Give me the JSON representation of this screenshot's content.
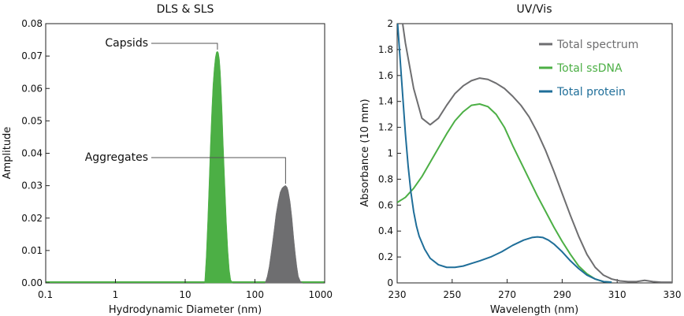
{
  "chart_data": [
    {
      "type": "area",
      "title": "DLS & SLS",
      "xlabel": "Hydrodynamic Diameter (nm)",
      "ylabel": "Amplitude",
      "xscale": "log",
      "xlim": [
        0.1,
        1000
      ],
      "ylim": [
        0,
        0.08
      ],
      "xticks": [
        "0.1",
        "1",
        "10",
        "100",
        "1000"
      ],
      "yticks": [
        "0.00",
        "0.01",
        "0.02",
        "0.03",
        "0.04",
        "0.05",
        "0.06",
        "0.07",
        "0.08"
      ],
      "series": [
        {
          "name": "Capsids",
          "color": "#4caf45",
          "x": [
            19,
            20,
            21,
            22,
            23,
            24,
            25,
            26,
            27,
            28,
            29,
            30,
            31,
            32,
            33,
            34,
            35,
            37,
            39,
            41,
            43,
            45,
            48
          ],
          "y": [
            0,
            0.008,
            0.019,
            0.031,
            0.043,
            0.053,
            0.061,
            0.066,
            0.0695,
            0.0712,
            0.0715,
            0.071,
            0.069,
            0.065,
            0.059,
            0.052,
            0.044,
            0.031,
            0.019,
            0.01,
            0.004,
            0.001,
            0
          ]
        },
        {
          "name": "Aggregates",
          "color": "#6e6e70",
          "x": [
            140,
            150,
            160,
            170,
            180,
            190,
            200,
            215,
            230,
            245,
            260,
            275,
            290,
            300,
            320,
            340,
            360,
            380,
            400,
            420,
            450,
            480
          ],
          "y": [
            0,
            0.002,
            0.005,
            0.009,
            0.013,
            0.017,
            0.021,
            0.025,
            0.028,
            0.0293,
            0.0298,
            0.0301,
            0.0295,
            0.0285,
            0.025,
            0.02,
            0.014,
            0.009,
            0.005,
            0.002,
            0.0005,
            0
          ]
        }
      ],
      "annotations": [
        "Capsids",
        "Aggregates"
      ]
    },
    {
      "type": "line",
      "title": "UV/Vis",
      "xlabel": "Wavelength (nm)",
      "ylabel": "Absorbance (10 mm)",
      "xlim": [
        230,
        330
      ],
      "ylim": [
        0,
        2
      ],
      "xticks": [
        "230",
        "250",
        "270",
        "290",
        "310",
        "330"
      ],
      "yticks": [
        "0",
        "0.2",
        "0.4",
        "0.6",
        "0.8",
        "1",
        "1.2",
        "1.4",
        "1.6",
        "1.8",
        "2"
      ],
      "legend": "top-right",
      "series": [
        {
          "name": "Total spectrum",
          "color": "#6e6e70",
          "x": [
            230,
            233,
            236,
            239,
            242,
            245,
            248,
            251,
            254,
            257,
            260,
            263,
            266,
            269,
            272,
            275,
            278,
            281,
            284,
            287,
            290,
            293,
            296,
            299,
            302,
            305,
            308,
            311,
            314,
            317,
            320,
            323,
            326,
            330
          ],
          "y": [
            2.3,
            1.85,
            1.5,
            1.27,
            1.22,
            1.27,
            1.37,
            1.46,
            1.52,
            1.56,
            1.58,
            1.57,
            1.54,
            1.5,
            1.44,
            1.37,
            1.28,
            1.16,
            1.02,
            0.86,
            0.69,
            0.52,
            0.36,
            0.22,
            0.12,
            0.06,
            0.03,
            0.015,
            0.01,
            0.01,
            0.02,
            0.01,
            0.005,
            0.005
          ]
        },
        {
          "name": "Total ssDNA",
          "color": "#4caf45",
          "x": [
            230,
            233,
            236,
            239,
            242,
            245,
            248,
            251,
            254,
            257,
            260,
            263,
            266,
            269,
            272,
            275,
            278,
            281,
            284,
            287,
            290,
            293,
            296,
            299,
            302,
            305,
            308
          ],
          "y": [
            0.62,
            0.66,
            0.73,
            0.82,
            0.93,
            1.04,
            1.15,
            1.25,
            1.32,
            1.37,
            1.38,
            1.36,
            1.3,
            1.2,
            1.06,
            0.93,
            0.8,
            0.67,
            0.55,
            0.43,
            0.32,
            0.22,
            0.13,
            0.07,
            0.03,
            0.01,
            0.005
          ]
        },
        {
          "name": "Total protein",
          "color": "#1f6e99",
          "x": [
            230,
            231,
            232,
            233,
            234,
            235,
            236,
            237,
            238,
            240,
            242,
            245,
            248,
            251,
            254,
            257,
            260,
            264,
            268,
            272,
            276,
            279,
            281,
            283,
            285,
            287,
            290,
            293,
            296,
            299,
            302,
            305,
            308
          ],
          "y": [
            2.05,
            1.75,
            1.45,
            1.15,
            0.9,
            0.7,
            0.55,
            0.44,
            0.36,
            0.26,
            0.19,
            0.14,
            0.12,
            0.12,
            0.13,
            0.15,
            0.17,
            0.2,
            0.24,
            0.29,
            0.33,
            0.35,
            0.355,
            0.35,
            0.33,
            0.3,
            0.24,
            0.17,
            0.11,
            0.06,
            0.03,
            0.01,
            0.005
          ]
        }
      ]
    }
  ]
}
